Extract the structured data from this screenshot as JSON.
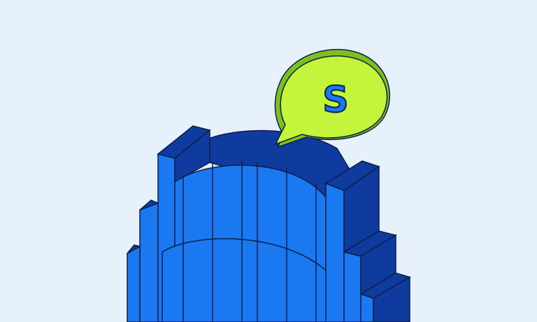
{
  "illustration": {
    "background_color": "#e6f1fc",
    "building_front_color": "#1a78f0",
    "building_side_color": "#0f3a9e",
    "outline_color": "#0b1f4a",
    "bubble_color": "#c3f53a",
    "bubble_shadow_color": "#7fbf1e",
    "bubble_letter": "S",
    "bubble_letter_color": "#1a78f0"
  }
}
